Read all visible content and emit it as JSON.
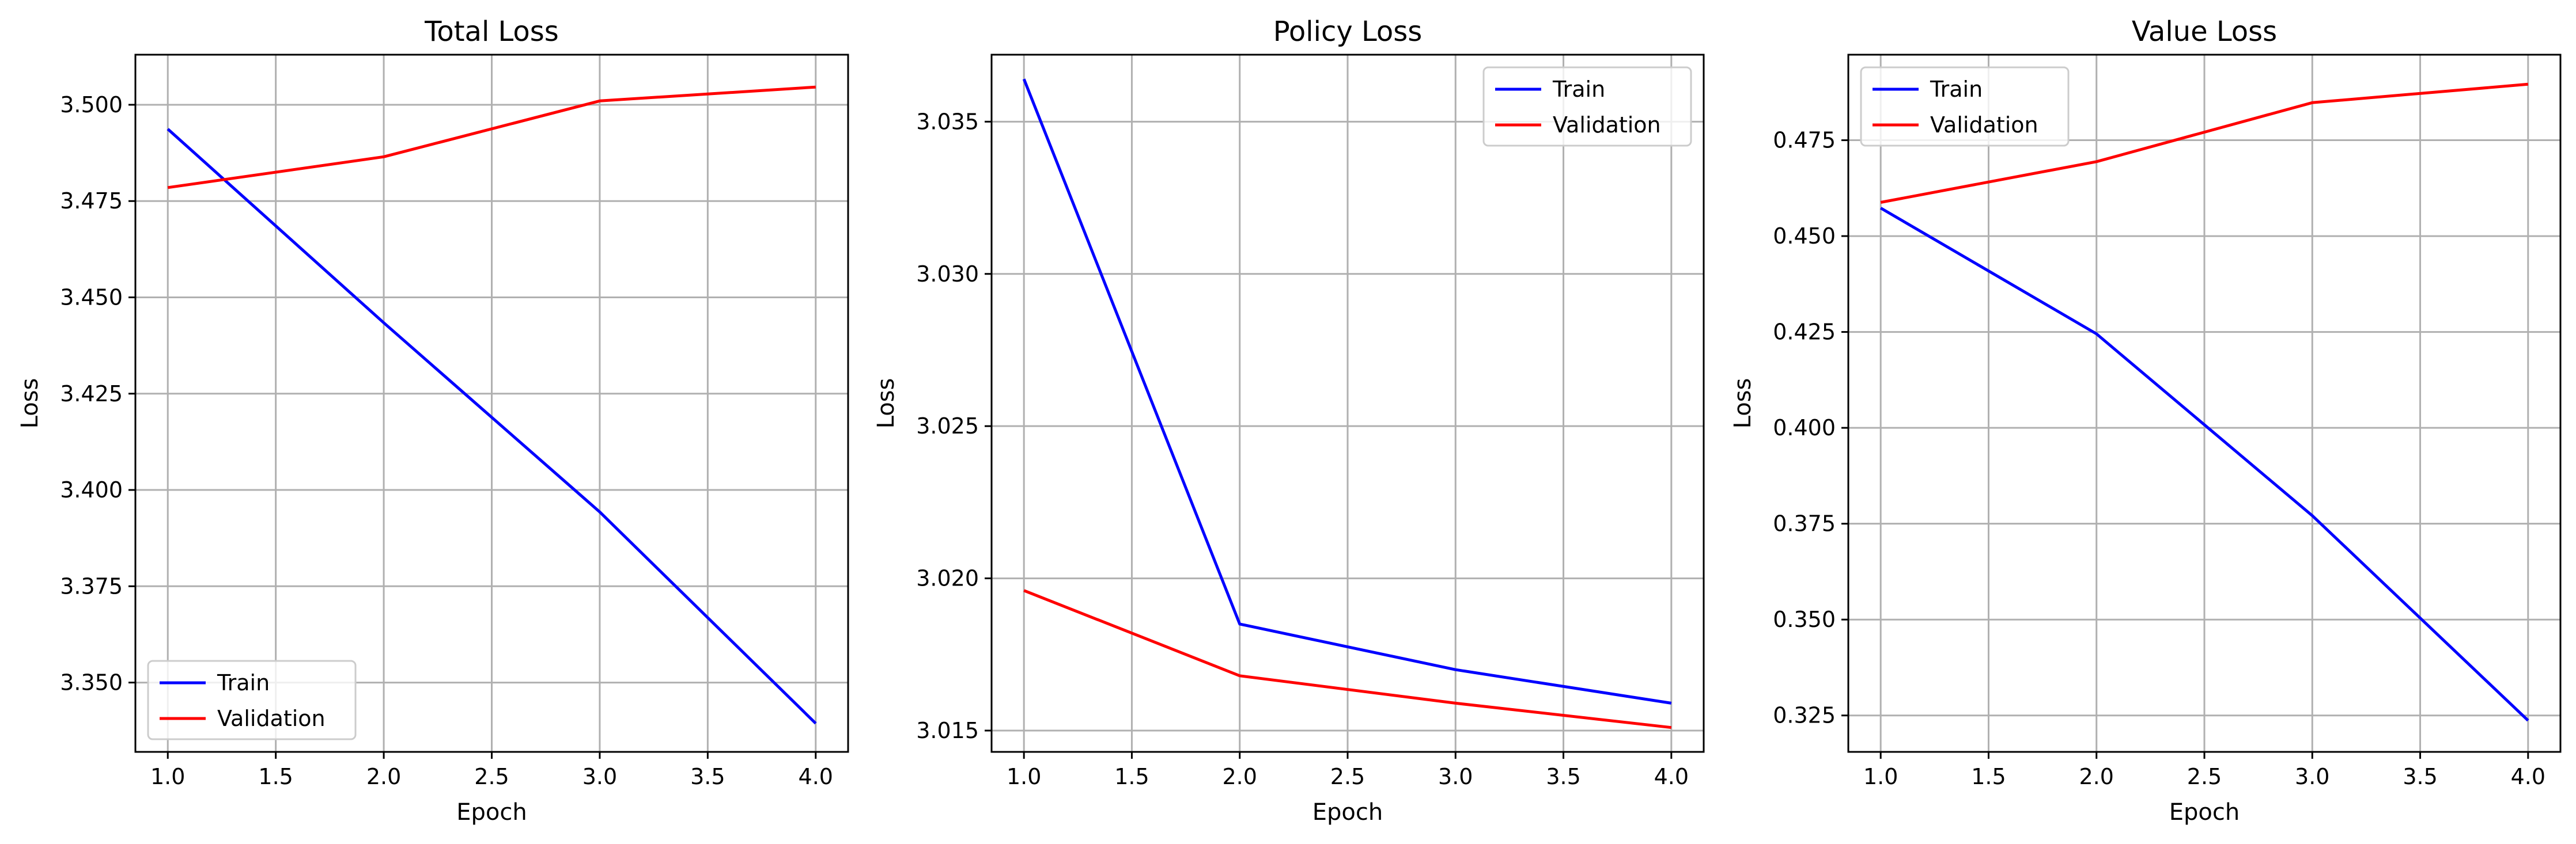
{
  "chart_data": [
    {
      "type": "line",
      "title": "Total Loss",
      "xlabel": "Epoch",
      "ylabel": "Loss",
      "xlim": [
        0.85,
        4.15
      ],
      "ylim": [
        3.332,
        3.513
      ],
      "xticks": [
        1.0,
        1.5,
        2.0,
        2.5,
        3.0,
        3.5,
        4.0
      ],
      "xtick_labels": [
        "1.0",
        "1.5",
        "2.0",
        "2.5",
        "3.0",
        "3.5",
        "4.0"
      ],
      "yticks": [
        3.35,
        3.375,
        3.4,
        3.425,
        3.45,
        3.475,
        3.5
      ],
      "ytick_labels": [
        "3.350",
        "3.375",
        "3.400",
        "3.425",
        "3.450",
        "3.475",
        "3.500"
      ],
      "grid": true,
      "legend": "lower-left",
      "x": [
        1,
        2,
        3,
        4
      ],
      "series": [
        {
          "name": "Train",
          "color": "#0000ff",
          "values": [
            3.4937,
            3.4434,
            3.3943,
            3.3394
          ]
        },
        {
          "name": "Validation",
          "color": "#ff0000",
          "values": [
            3.4785,
            3.4865,
            3.501,
            3.5046
          ]
        }
      ]
    },
    {
      "type": "line",
      "title": "Policy Loss",
      "xlabel": "Epoch",
      "ylabel": "Loss",
      "xlim": [
        0.85,
        4.15
      ],
      "ylim": [
        3.0143,
        3.0372
      ],
      "xticks": [
        1.0,
        1.5,
        2.0,
        2.5,
        3.0,
        3.5,
        4.0
      ],
      "xtick_labels": [
        "1.0",
        "1.5",
        "2.0",
        "2.5",
        "3.0",
        "3.5",
        "4.0"
      ],
      "yticks": [
        3.015,
        3.02,
        3.025,
        3.03,
        3.035
      ],
      "ytick_labels": [
        "3.015",
        "3.020",
        "3.025",
        "3.030",
        "3.035"
      ],
      "grid": true,
      "legend": "upper-right",
      "x": [
        1,
        2,
        3,
        4
      ],
      "series": [
        {
          "name": "Train",
          "color": "#0000ff",
          "values": [
            3.0364,
            3.0185,
            3.017,
            3.0159
          ]
        },
        {
          "name": "Validation",
          "color": "#ff0000",
          "values": [
            3.0196,
            3.0168,
            3.0159,
            3.0151
          ]
        }
      ]
    },
    {
      "type": "line",
      "title": "Value Loss",
      "xlabel": "Epoch",
      "ylabel": "Loss",
      "xlim": [
        0.85,
        4.15
      ],
      "ylim": [
        0.3155,
        0.4973
      ],
      "xticks": [
        1.0,
        1.5,
        2.0,
        2.5,
        3.0,
        3.5,
        4.0
      ],
      "xtick_labels": [
        "1.0",
        "1.5",
        "2.0",
        "2.5",
        "3.0",
        "3.5",
        "4.0"
      ],
      "yticks": [
        0.325,
        0.35,
        0.375,
        0.4,
        0.425,
        0.45,
        0.475
      ],
      "ytick_labels": [
        "0.325",
        "0.350",
        "0.375",
        "0.400",
        "0.425",
        "0.450",
        "0.475"
      ],
      "grid": true,
      "legend": "upper-left",
      "x": [
        1,
        2,
        3,
        4
      ],
      "series": [
        {
          "name": "Train",
          "color": "#0000ff",
          "values": [
            0.4573,
            0.4245,
            0.3771,
            0.3237
          ]
        },
        {
          "name": "Validation",
          "color": "#ff0000",
          "values": [
            0.4588,
            0.4694,
            0.4848,
            0.4896
          ]
        }
      ]
    }
  ]
}
